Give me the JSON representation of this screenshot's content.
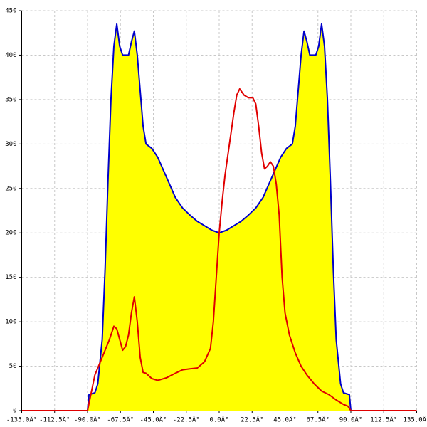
{
  "chart_data": {
    "type": "line",
    "xlim": [
      -135,
      135
    ],
    "ylim": [
      0,
      450
    ],
    "xticks": [
      {
        "value": -135,
        "label": "-135.0Â°"
      },
      {
        "value": -112.5,
        "label": "-112.5Â°"
      },
      {
        "value": -90,
        "label": "-90.0Â°"
      },
      {
        "value": -67.5,
        "label": "-67.5Â°"
      },
      {
        "value": -45,
        "label": "-45.0Â°"
      },
      {
        "value": -22.5,
        "label": "-22.5Â°"
      },
      {
        "value": 0,
        "label": "0.0Â°"
      },
      {
        "value": 22.5,
        "label": "22.5Â°"
      },
      {
        "value": 45,
        "label": "45.0Â°"
      },
      {
        "value": 67.5,
        "label": "67.5Â°"
      },
      {
        "value": 90,
        "label": "90.0Â°"
      },
      {
        "value": 112.5,
        "label": "112.5Â°"
      },
      {
        "value": 135,
        "label": "135.0Â°"
      }
    ],
    "yticks": [
      0,
      50,
      100,
      150,
      200,
      250,
      300,
      350,
      400,
      450
    ],
    "grid": true,
    "series": [
      {
        "color": "#0000cc",
        "fill": "#ffff00",
        "x": [
          -90,
          -89,
          -85,
          -83,
          -80,
          -78,
          -76,
          -74,
          -72,
          -70,
          -68,
          -66,
          -62,
          -60,
          -58,
          -56,
          -54,
          -52,
          -50,
          -46,
          -42,
          -38,
          -34,
          -30,
          -25,
          -20,
          -15,
          -10,
          -5,
          0,
          5,
          10,
          15,
          20,
          25,
          30,
          34,
          38,
          42,
          46,
          50,
          52,
          54,
          56,
          58,
          60,
          62,
          66,
          68,
          70,
          72,
          74,
          76,
          78,
          80,
          83,
          85,
          89,
          90
        ],
        "values": [
          0,
          18,
          20,
          30,
          80,
          160,
          260,
          350,
          410,
          435,
          410,
          400,
          400,
          415,
          427,
          400,
          360,
          320,
          300,
          295,
          285,
          270,
          255,
          240,
          228,
          220,
          213,
          208,
          203,
          200,
          203,
          208,
          213,
          220,
          228,
          240,
          255,
          270,
          285,
          295,
          300,
          320,
          360,
          400,
          427,
          415,
          400,
          400,
          410,
          435,
          410,
          350,
          260,
          160,
          80,
          30,
          20,
          18,
          0
        ]
      },
      {
        "color": "#e00000",
        "x": [
          -135,
          -90,
          -85,
          -80,
          -75,
          -72,
          -70,
          -68,
          -66,
          -64,
          -62,
          -60,
          -58,
          -56,
          -54,
          -52,
          -50,
          -46,
          -42,
          -36,
          -30,
          -25,
          -20,
          -15,
          -10,
          -6,
          -4,
          -2,
          0,
          2,
          4,
          7,
          10,
          12,
          14,
          17,
          20,
          23,
          25,
          27,
          29,
          31,
          33,
          35,
          37,
          39,
          41,
          43,
          45,
          48,
          52,
          56,
          60,
          65,
          70,
          75,
          80,
          85,
          88,
          90,
          135
        ],
        "values": [
          0,
          0,
          40,
          60,
          80,
          95,
          92,
          80,
          68,
          72,
          85,
          110,
          128,
          100,
          60,
          43,
          42,
          36,
          34,
          37,
          42,
          46,
          47,
          48,
          55,
          70,
          100,
          150,
          200,
          235,
          265,
          300,
          335,
          355,
          362,
          355,
          352,
          352,
          345,
          320,
          290,
          272,
          275,
          280,
          275,
          255,
          220,
          150,
          110,
          85,
          65,
          50,
          40,
          30,
          22,
          18,
          12,
          7,
          5,
          0,
          0
        ]
      }
    ]
  }
}
